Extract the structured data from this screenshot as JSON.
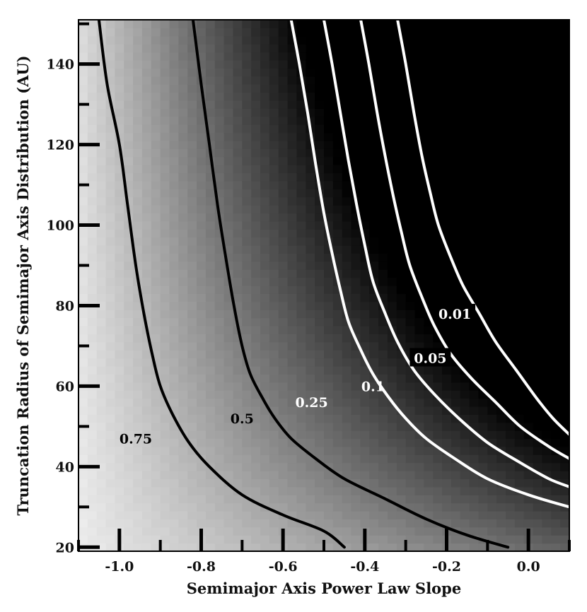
{
  "chart_data": {
    "type": "heatmap",
    "title": "",
    "xlabel": "Semimajor Axis Power Law Slope",
    "ylabel": "Truncation Radius of Semimajor Axis Distribution (AU)",
    "xlim": [
      -1.1,
      0.1
    ],
    "ylim": [
      19,
      151
    ],
    "x_ticks": [
      -1.0,
      -0.8,
      -0.6,
      -0.4,
      -0.2,
      0.0
    ],
    "x_tick_labels": [
      "-1.0",
      "-0.8",
      "-0.6",
      "-0.4",
      "-0.2",
      "0.0"
    ],
    "y_ticks": [
      20,
      40,
      60,
      80,
      100,
      120,
      140
    ],
    "y_tick_labels": [
      "20",
      "40",
      "60",
      "80",
      "100",
      "120",
      "140"
    ],
    "colormap": "grayscale (white = high, black = low)",
    "grid": false,
    "contours": [
      {
        "level": "0.75",
        "color": "#000000",
        "label_color": "#000000",
        "label_box": "none",
        "points": [
          [
            -1.05,
            151
          ],
          [
            -1.03,
            135
          ],
          [
            -1.0,
            120
          ],
          [
            -0.98,
            105
          ],
          [
            -0.96,
            90
          ],
          [
            -0.94,
            78
          ],
          [
            -0.92,
            68
          ],
          [
            -0.9,
            60
          ],
          [
            -0.87,
            53
          ],
          [
            -0.83,
            46
          ],
          [
            -0.78,
            40
          ],
          [
            -0.7,
            33
          ],
          [
            -0.6,
            28
          ],
          [
            -0.5,
            24
          ],
          [
            -0.45,
            20
          ]
        ]
      },
      {
        "level": "0.5",
        "color": "#000000",
        "label_color": "#000000",
        "label_box": "none",
        "points": [
          [
            -0.82,
            151
          ],
          [
            -0.8,
            135
          ],
          [
            -0.78,
            120
          ],
          [
            -0.76,
            105
          ],
          [
            -0.74,
            92
          ],
          [
            -0.72,
            80
          ],
          [
            -0.7,
            70
          ],
          [
            -0.68,
            63
          ],
          [
            -0.65,
            57
          ],
          [
            -0.62,
            52
          ],
          [
            -0.58,
            47
          ],
          [
            -0.52,
            42
          ],
          [
            -0.45,
            37
          ],
          [
            -0.35,
            32
          ],
          [
            -0.25,
            27
          ],
          [
            -0.15,
            23
          ],
          [
            -0.05,
            20
          ]
        ]
      },
      {
        "level": "0.25",
        "color": "#ffffff",
        "label_color": "#ffffff",
        "label_box": "none",
        "points": [
          [
            -0.58,
            151
          ],
          [
            -0.56,
            140
          ],
          [
            -0.54,
            128
          ],
          [
            -0.52,
            115
          ],
          [
            -0.5,
            103
          ],
          [
            -0.48,
            93
          ],
          [
            -0.46,
            84
          ],
          [
            -0.44,
            76
          ],
          [
            -0.41,
            69
          ],
          [
            -0.38,
            63
          ],
          [
            -0.34,
            57
          ],
          [
            -0.3,
            52
          ],
          [
            -0.25,
            47
          ],
          [
            -0.18,
            42
          ],
          [
            -0.1,
            37
          ],
          [
            0.0,
            33
          ],
          [
            0.1,
            30
          ]
        ]
      },
      {
        "level": "0.1",
        "color": "#ffffff",
        "label_color": "#ffffff",
        "label_box": "none",
        "points": [
          [
            -0.5,
            151
          ],
          [
            -0.48,
            140
          ],
          [
            -0.46,
            128
          ],
          [
            -0.44,
            116
          ],
          [
            -0.42,
            105
          ],
          [
            -0.4,
            95
          ],
          [
            -0.38,
            86
          ],
          [
            -0.35,
            78
          ],
          [
            -0.32,
            71
          ],
          [
            -0.28,
            64
          ],
          [
            -0.23,
            58
          ],
          [
            -0.17,
            52
          ],
          [
            -0.1,
            46
          ],
          [
            -0.02,
            41
          ],
          [
            0.05,
            37
          ],
          [
            0.1,
            35
          ]
        ]
      },
      {
        "level": "0.05",
        "color": "#ffffff",
        "label_color": "#ffffff",
        "label_box": "#000000",
        "points": [
          [
            -0.41,
            151
          ],
          [
            -0.39,
            140
          ],
          [
            -0.37,
            128
          ],
          [
            -0.35,
            117
          ],
          [
            -0.33,
            107
          ],
          [
            -0.31,
            98
          ],
          [
            -0.29,
            90
          ],
          [
            -0.26,
            82
          ],
          [
            -0.23,
            75
          ],
          [
            -0.19,
            68
          ],
          [
            -0.14,
            62
          ],
          [
            -0.08,
            56
          ],
          [
            -0.02,
            50
          ],
          [
            0.05,
            45
          ],
          [
            0.1,
            42
          ]
        ]
      },
      {
        "level": "0.01",
        "color": "#ffffff",
        "label_color": "#ffffff",
        "label_box": "#000000",
        "points": [
          [
            -0.32,
            151
          ],
          [
            -0.3,
            140
          ],
          [
            -0.28,
            128
          ],
          [
            -0.26,
            117
          ],
          [
            -0.24,
            108
          ],
          [
            -0.22,
            100
          ],
          [
            -0.19,
            92
          ],
          [
            -0.16,
            85
          ],
          [
            -0.12,
            78
          ],
          [
            -0.08,
            71
          ],
          [
            -0.03,
            64
          ],
          [
            0.02,
            57
          ],
          [
            0.06,
            52
          ],
          [
            0.1,
            48
          ]
        ]
      }
    ],
    "contour_labels": [
      {
        "text": "0.75",
        "x": -0.96,
        "y": 47
      },
      {
        "text": "0.5",
        "x": -0.7,
        "y": 52
      },
      {
        "text": "0.25",
        "x": -0.53,
        "y": 56
      },
      {
        "text": "0.1",
        "x": -0.38,
        "y": 60
      },
      {
        "text": "0.05",
        "x": -0.24,
        "y": 67
      },
      {
        "text": "0.01",
        "x": -0.18,
        "y": 78
      }
    ]
  }
}
